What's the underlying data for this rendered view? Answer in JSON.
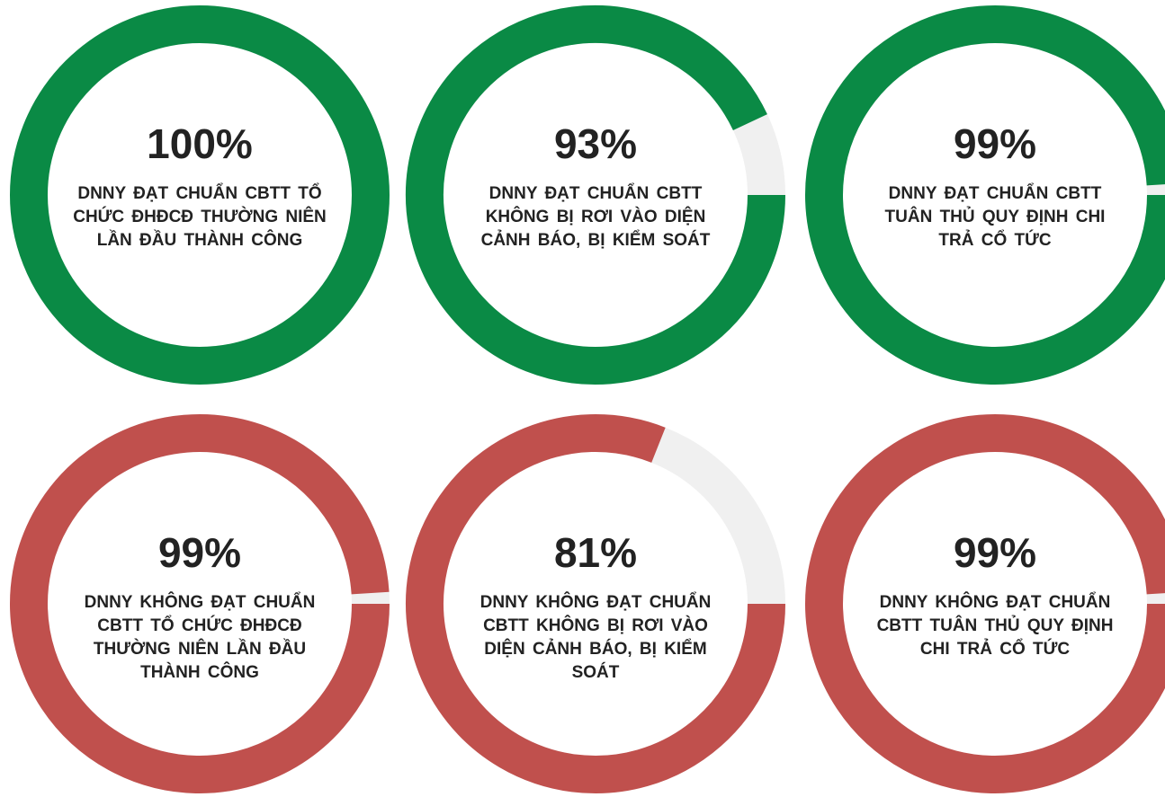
{
  "chart_data": [
    {
      "type": "donut",
      "values": [
        100
      ],
      "value_labels": [
        "100%"
      ],
      "color": "#0a8a45",
      "title": "DNNY ĐẠT CHUẨN CBTT TỔ CHỨC ĐHĐCĐ THƯỜNG NIÊN LẦN ĐẦU THÀNH CÔNG"
    },
    {
      "type": "donut",
      "values": [
        93
      ],
      "value_labels": [
        "93%"
      ],
      "color": "#0a8a45",
      "title": "DNNY ĐẠT CHUẨN CBTT KHÔNG BỊ RƠI VÀO DIỆN CẢNH BÁO, BỊ KIỂM SOÁT"
    },
    {
      "type": "donut",
      "values": [
        99
      ],
      "value_labels": [
        "99%"
      ],
      "color": "#0a8a45",
      "title": "DNNY ĐẠT CHUẨN CBTT TUÂN THỦ QUY ĐỊNH CHI TRẢ CỔ TỨC"
    },
    {
      "type": "donut",
      "values": [
        99
      ],
      "value_labels": [
        "99%"
      ],
      "color": "#c0504d",
      "title": "DNNY KHÔNG ĐẠT CHUẨN CBTT TỔ CHỨC ĐHĐCĐ THƯỜNG NIÊN LẦN ĐẦU THÀNH CÔNG"
    },
    {
      "type": "donut",
      "values": [
        81
      ],
      "value_labels": [
        "81%"
      ],
      "color": "#c0504d",
      "title": "DNNY KHÔNG ĐẠT CHUẨN CBTT KHÔNG BỊ RƠI VÀO DIỆN CẢNH BÁO, BỊ KIỂM SOÁT"
    },
    {
      "type": "donut",
      "values": [
        99
      ],
      "value_labels": [
        "99%"
      ],
      "color": "#c0504d",
      "title": "DNNY KHÔNG ĐẠT CHUẨN CBTT TUÂN THỦ QUY ĐỊNH CHI TRẢ CỔ TỨC"
    }
  ]
}
